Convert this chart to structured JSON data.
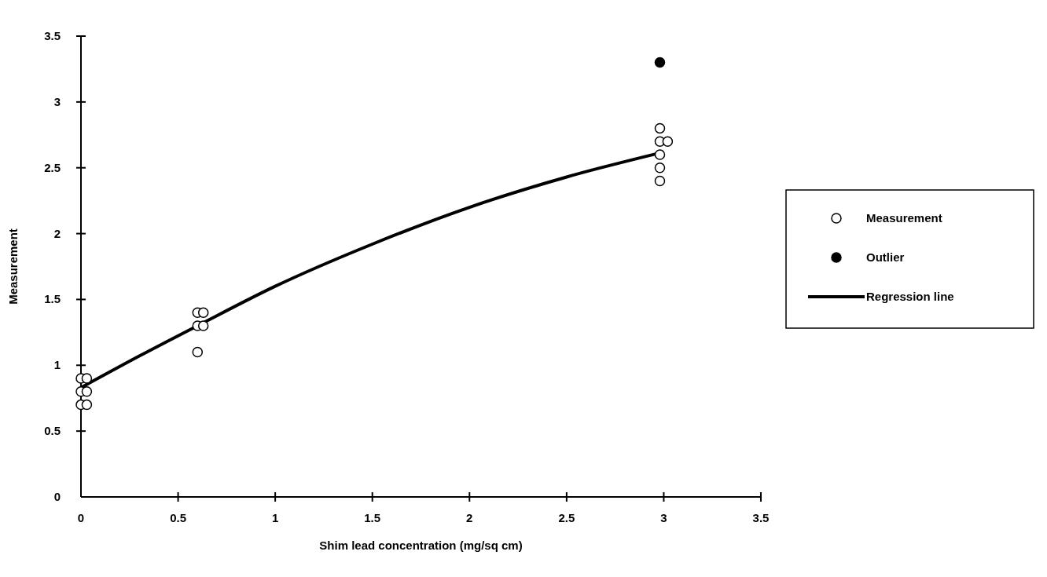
{
  "chart_data": {
    "type": "scatter",
    "xlabel": "Shim lead concentration (mg/sq cm)",
    "ylabel": "Measurement",
    "xlim": [
      0,
      3.5
    ],
    "xticks": [
      0,
      0.5,
      1,
      1.5,
      2,
      2.5,
      3,
      3.5
    ],
    "ylim": [
      0,
      3.5
    ],
    "yticks": [
      0,
      0.5,
      1,
      1.5,
      2,
      2.5,
      3,
      3.5
    ],
    "grid": false,
    "legend": "right",
    "series": [
      {
        "name": "Measurement",
        "marker": "circle",
        "color": "#ffffff",
        "x": [
          0,
          0.03,
          0,
          0.03,
          0,
          0.03,
          0.6,
          0.63,
          0.6,
          0.63,
          0.6,
          2.98,
          2.98,
          3.02,
          2.98,
          2.98,
          2.98
        ],
        "values": [
          0.9,
          0.9,
          0.8,
          0.8,
          0.7,
          0.7,
          1.4,
          1.4,
          1.3,
          1.3,
          1.1,
          2.8,
          2.7,
          2.7,
          2.6,
          2.5,
          2.4
        ]
      },
      {
        "name": "Outlier",
        "marker": "circle",
        "color": "#000000",
        "x": [
          2.98
        ],
        "values": [
          3.3
        ]
      },
      {
        "name": "Regression line",
        "type": "line",
        "marker": "none",
        "color": "#000000",
        "line_style": "solid",
        "x": [
          0,
          0.3,
          0.6,
          1,
          1.5,
          2,
          2.5,
          3
        ],
        "values": [
          0.83,
          1.07,
          1.3,
          1.6,
          1.92,
          2.2,
          2.43,
          2.62
        ]
      }
    ]
  }
}
